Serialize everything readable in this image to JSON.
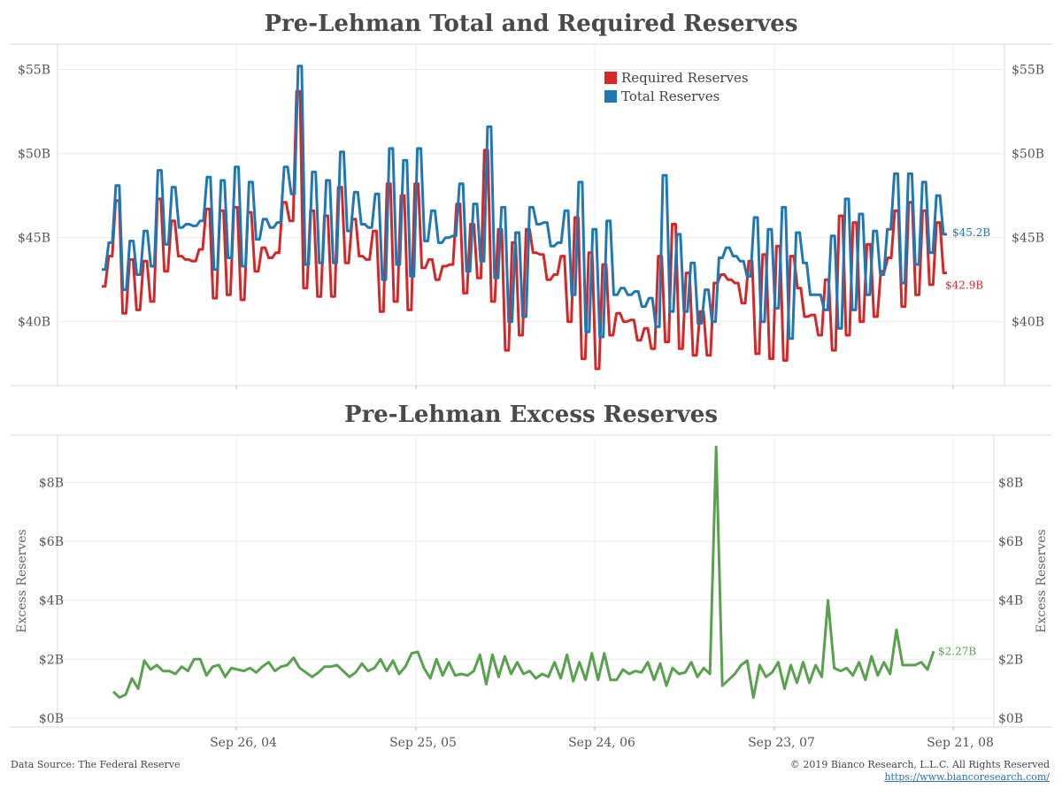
{
  "titles": {
    "top": "Pre-Lehman Total and Required Reserves",
    "bottom": "Pre-Lehman Excess Reserves"
  },
  "footer": {
    "source": "Data Source: The Federal Reserve",
    "copyright": "© 2019 Bianco Research, L.L.C. All Rights Reserved",
    "link": "https://www.biancoresearch.com/"
  },
  "colors": {
    "required": "#d62728",
    "total": "#1f77b4",
    "excess": "#59a14f",
    "grid": "#ececec"
  },
  "chart_data": [
    {
      "type": "line",
      "title": "Pre-Lehman Total and Required Reserves",
      "x_axis": "shared (days relative to Lehman); x tick labels shown on bottom chart",
      "ylim": [
        36.2,
        56.5
      ],
      "yticks": [
        {
          "value": 40,
          "label": "$40B"
        },
        {
          "value": 45,
          "label": "$45B"
        },
        {
          "value": 50,
          "label": "$50B"
        },
        {
          "value": 55,
          "label": "$55B"
        }
      ],
      "legend_position": "top-right",
      "series": [
        {
          "name": "Required Reserves",
          "color": "#d62728",
          "end_label": "$42.9B",
          "values": [
            42.1,
            42.1,
            43.9,
            43.9,
            47.2,
            47.2,
            40.5,
            40.5,
            43.7,
            43.7,
            40.7,
            40.7,
            43.6,
            43.6,
            41.2,
            41.2,
            47.3,
            47.3,
            43.0,
            43.0,
            46.0,
            46.0,
            43.9,
            43.9,
            43.7,
            43.7,
            43.6,
            43.6,
            44.3,
            44.3,
            46.7,
            46.7,
            41.4,
            41.4,
            46.6,
            46.6,
            41.6,
            41.6,
            46.8,
            46.8,
            41.3,
            41.3,
            46.5,
            46.5,
            43.0,
            43.0,
            44.4,
            44.4,
            43.8,
            43.8,
            44.1,
            44.1,
            47.1,
            47.1,
            46.0,
            46.0,
            53.7,
            53.7,
            42.0,
            42.0,
            46.6,
            46.6,
            41.5,
            41.5,
            46.3,
            46.3,
            41.5,
            41.5,
            48.0,
            48.0,
            43.5,
            43.5,
            46.1,
            46.1,
            43.9,
            43.9,
            43.7,
            43.7,
            45.4,
            45.4,
            40.6,
            40.6,
            48.2,
            48.2,
            41.2,
            41.2,
            47.5,
            47.5,
            40.7,
            40.7,
            48.2,
            48.2,
            43.2,
            43.2,
            43.7,
            43.7,
            42.5,
            42.5,
            43.3,
            43.3,
            43.4,
            43.4,
            47.0,
            47.0,
            41.7,
            41.7,
            45.8,
            45.8,
            42.6,
            42.6,
            50.2,
            50.2,
            41.2,
            41.2,
            45.5,
            45.5,
            38.3,
            38.3,
            44.7,
            44.7,
            39.2,
            39.2,
            45.5,
            45.5,
            44.1,
            44.1,
            44.0,
            44.0,
            42.5,
            42.5,
            42.8,
            42.8,
            43.9,
            43.9,
            40.0,
            40.0,
            46.2,
            46.2,
            37.8,
            37.8,
            44.1,
            44.1,
            37.2,
            37.2,
            43.4,
            43.4,
            39.2,
            39.2,
            40.5,
            40.5,
            40.0,
            40.0,
            40.1,
            40.1,
            38.9,
            38.9,
            39.6,
            39.6,
            38.4,
            38.4,
            43.9,
            43.9,
            38.8,
            38.8,
            45.8,
            45.8,
            38.4,
            38.4,
            42.9,
            42.9,
            38.0,
            38.0,
            40.6,
            40.6,
            38.0,
            38.0,
            42.3,
            42.3,
            42.8,
            42.8,
            42.5,
            42.5,
            42.3,
            42.3,
            41.1,
            41.1,
            43.6,
            43.6,
            38.1,
            38.1,
            44.0,
            44.0,
            37.8,
            37.8,
            44.5,
            44.5,
            37.7,
            37.7,
            43.9,
            43.9,
            42.0,
            42.0,
            40.3,
            40.3,
            40.4,
            40.4,
            39.2,
            39.2,
            42.5,
            42.5,
            38.3,
            38.3,
            46.3,
            46.3,
            39.2,
            39.2,
            45.9,
            45.9,
            40.0,
            40.0,
            44.6,
            44.6,
            40.3,
            40.3,
            43.0,
            43.0,
            43.8,
            43.8,
            46.6,
            46.6,
            40.9,
            40.9,
            47.1,
            47.1,
            41.6,
            41.6,
            46.6,
            46.6,
            42.2,
            42.2,
            45.9,
            45.9,
            42.9,
            42.9
          ]
        },
        {
          "name": "Total Reserves",
          "color": "#1f77b4",
          "end_label": "$45.2B",
          "values": [
            43.1,
            43.1,
            44.7,
            44.7,
            48.1,
            48.1,
            41.9,
            41.9,
            44.8,
            44.8,
            42.8,
            42.8,
            45.4,
            45.4,
            43.3,
            43.3,
            49.0,
            49.0,
            44.6,
            44.6,
            48.0,
            48.0,
            45.6,
            45.6,
            45.8,
            45.8,
            45.7,
            45.7,
            46.0,
            46.0,
            48.6,
            48.6,
            43.1,
            43.1,
            48.4,
            48.4,
            43.8,
            43.8,
            49.2,
            49.2,
            43.3,
            43.3,
            48.3,
            48.3,
            44.9,
            44.9,
            46.1,
            46.1,
            45.6,
            45.6,
            45.9,
            45.9,
            49.2,
            49.2,
            47.6,
            47.6,
            55.2,
            55.2,
            43.4,
            43.4,
            48.9,
            48.9,
            43.5,
            43.5,
            48.4,
            48.4,
            43.5,
            43.5,
            50.1,
            50.1,
            45.4,
            45.4,
            47.7,
            47.7,
            45.8,
            45.8,
            45.6,
            45.6,
            47.6,
            47.6,
            42.5,
            42.5,
            50.3,
            50.3,
            43.4,
            43.4,
            49.6,
            49.6,
            42.7,
            42.7,
            50.3,
            50.3,
            44.8,
            44.8,
            46.6,
            46.6,
            44.7,
            44.7,
            45.0,
            45.0,
            45.1,
            45.1,
            48.2,
            48.2,
            43.0,
            43.0,
            47.0,
            47.0,
            43.6,
            43.6,
            51.6,
            51.6,
            42.6,
            42.6,
            46.8,
            46.8,
            40.0,
            40.0,
            45.3,
            45.3,
            40.3,
            40.3,
            46.8,
            46.8,
            45.8,
            45.8,
            45.9,
            45.9,
            44.5,
            44.5,
            44.7,
            44.7,
            46.6,
            46.6,
            41.6,
            41.6,
            48.3,
            48.3,
            39.4,
            39.4,
            45.5,
            45.5,
            39.1,
            39.1,
            46.0,
            46.0,
            41.6,
            41.6,
            42.0,
            42.0,
            41.6,
            41.6,
            41.8,
            41.8,
            40.9,
            40.9,
            41.4,
            41.4,
            39.7,
            39.7,
            48.7,
            48.7,
            40.6,
            40.6,
            45.2,
            45.2,
            40.6,
            40.6,
            43.5,
            43.5,
            39.9,
            39.9,
            41.9,
            41.9,
            40.0,
            40.0,
            43.8,
            43.8,
            44.4,
            44.4,
            43.9,
            43.9,
            43.6,
            43.6,
            42.7,
            42.7,
            46.2,
            46.2,
            40.0,
            40.0,
            45.5,
            45.5,
            40.8,
            40.8,
            46.8,
            46.8,
            39.0,
            39.0,
            45.3,
            45.3,
            43.5,
            43.5,
            41.6,
            41.6,
            41.6,
            41.6,
            40.7,
            40.7,
            45.1,
            45.1,
            39.6,
            39.6,
            47.3,
            47.3,
            40.7,
            40.7,
            46.4,
            46.4,
            41.6,
            41.6,
            45.4,
            45.4,
            42.8,
            42.8,
            45.5,
            45.5,
            48.8,
            48.8,
            42.3,
            42.3,
            48.8,
            48.8,
            43.4,
            43.4,
            48.3,
            48.3,
            44.1,
            44.1,
            47.5,
            47.5,
            45.2,
            45.2
          ]
        }
      ]
    },
    {
      "type": "line",
      "title": "Pre-Lehman Excess Reserves",
      "ylabel": "Excess Reserves",
      "ylim": [
        -0.3,
        9.6
      ],
      "yticks": [
        {
          "value": 0,
          "label": "$0B"
        },
        {
          "value": 2,
          "label": "$2B"
        },
        {
          "value": 4,
          "label": "$4B"
        },
        {
          "value": 6,
          "label": "$6B"
        },
        {
          "value": 8,
          "label": "$8B"
        }
      ],
      "xticks": [
        "Sep 26, 04",
        "Sep 25, 05",
        "Sep 24, 06",
        "Sep 23, 07",
        "Sep 21, 08"
      ],
      "series": [
        {
          "name": "Excess Reserves",
          "color": "#59a14f",
          "end_label": "$2.27B",
          "values": [
            0.9,
            0.7,
            0.8,
            1.35,
            1.0,
            1.95,
            1.65,
            1.8,
            1.6,
            1.6,
            1.5,
            1.75,
            1.6,
            2.0,
            2.0,
            1.45,
            1.75,
            1.8,
            1.4,
            1.7,
            1.65,
            1.6,
            1.7,
            1.55,
            1.75,
            1.9,
            1.6,
            1.75,
            1.8,
            2.05,
            1.7,
            1.55,
            1.4,
            1.55,
            1.75,
            1.75,
            1.8,
            1.6,
            1.4,
            1.55,
            1.85,
            1.6,
            1.7,
            2.0,
            1.6,
            1.95,
            1.5,
            1.75,
            2.2,
            2.25,
            1.7,
            1.35,
            2.0,
            1.45,
            1.9,
            1.45,
            1.5,
            1.45,
            1.6,
            2.15,
            1.15,
            2.15,
            1.4,
            2.1,
            1.5,
            1.9,
            1.5,
            1.6,
            1.35,
            1.5,
            1.4,
            1.9,
            1.35,
            2.15,
            1.25,
            1.9,
            1.3,
            2.2,
            1.3,
            2.2,
            1.3,
            1.3,
            1.65,
            1.5,
            1.6,
            1.55,
            1.9,
            1.3,
            1.85,
            1.1,
            1.7,
            1.5,
            1.55,
            1.9,
            1.4,
            1.7,
            1.5,
            9.2,
            1.1,
            1.3,
            1.5,
            1.8,
            1.95,
            0.7,
            1.8,
            1.4,
            1.55,
            1.9,
            1.0,
            1.8,
            1.2,
            1.9,
            1.2,
            1.8,
            1.4,
            4.0,
            1.7,
            1.6,
            1.7,
            1.45,
            1.9,
            1.3,
            2.1,
            1.45,
            1.9,
            1.5,
            3.0,
            1.8,
            1.8,
            1.8,
            1.9,
            1.65,
            2.27
          ]
        }
      ]
    }
  ]
}
